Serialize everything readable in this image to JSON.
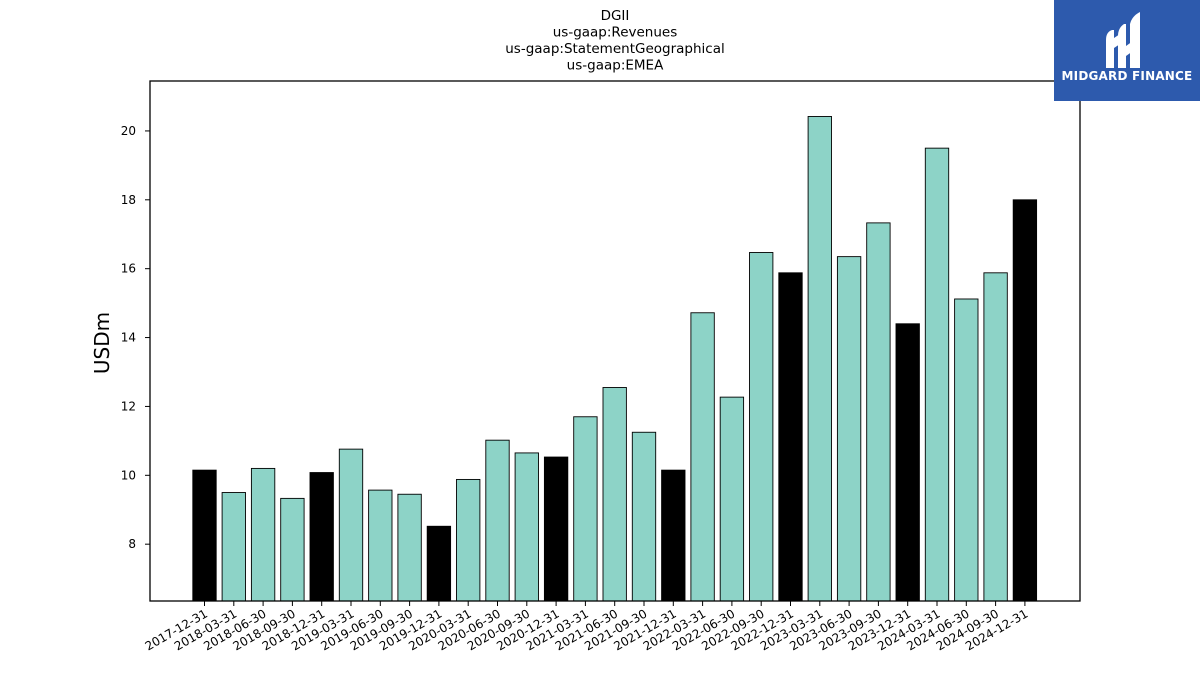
{
  "chart_data": {
    "type": "bar",
    "title": [
      "DGII",
      "us-gaap:Revenues",
      "us-gaap:StatementGeographical",
      "us-gaap:EMEA"
    ],
    "ylabel": "USDm",
    "xlabel": "",
    "ylim": [
      6.35,
      21.45
    ],
    "yticks": [
      8,
      10,
      12,
      14,
      16,
      18,
      20
    ],
    "categories": [
      "2017-12-31",
      "2018-03-31",
      "2018-06-30",
      "2018-09-30",
      "2018-12-31",
      "2019-03-31",
      "2019-06-30",
      "2019-09-30",
      "2019-12-31",
      "2020-03-31",
      "2020-06-30",
      "2020-09-30",
      "2020-12-31",
      "2021-03-31",
      "2021-06-30",
      "2021-09-30",
      "2021-12-31",
      "2022-03-31",
      "2022-06-30",
      "2022-09-30",
      "2022-12-31",
      "2023-03-31",
      "2023-06-30",
      "2023-09-30",
      "2023-12-31",
      "2024-03-31",
      "2024-06-30",
      "2024-09-30",
      "2024-12-31"
    ],
    "values": [
      10.15,
      9.5,
      10.2,
      9.33,
      10.08,
      10.76,
      9.57,
      9.45,
      8.52,
      9.88,
      11.02,
      10.65,
      10.53,
      11.7,
      12.55,
      11.25,
      10.15,
      14.72,
      12.27,
      16.47,
      15.88,
      20.42,
      16.35,
      17.33,
      14.4,
      19.5,
      15.12,
      15.88,
      18.0
    ],
    "colors": {
      "quarter": "#8dd3c7",
      "year_end": "#000000",
      "edge": "#000000"
    },
    "grid": false,
    "legend": "none"
  },
  "logo": {
    "text": "MIDGARD FINANCE",
    "background": "#2d5aad",
    "mark": "stylized-M-icon"
  }
}
